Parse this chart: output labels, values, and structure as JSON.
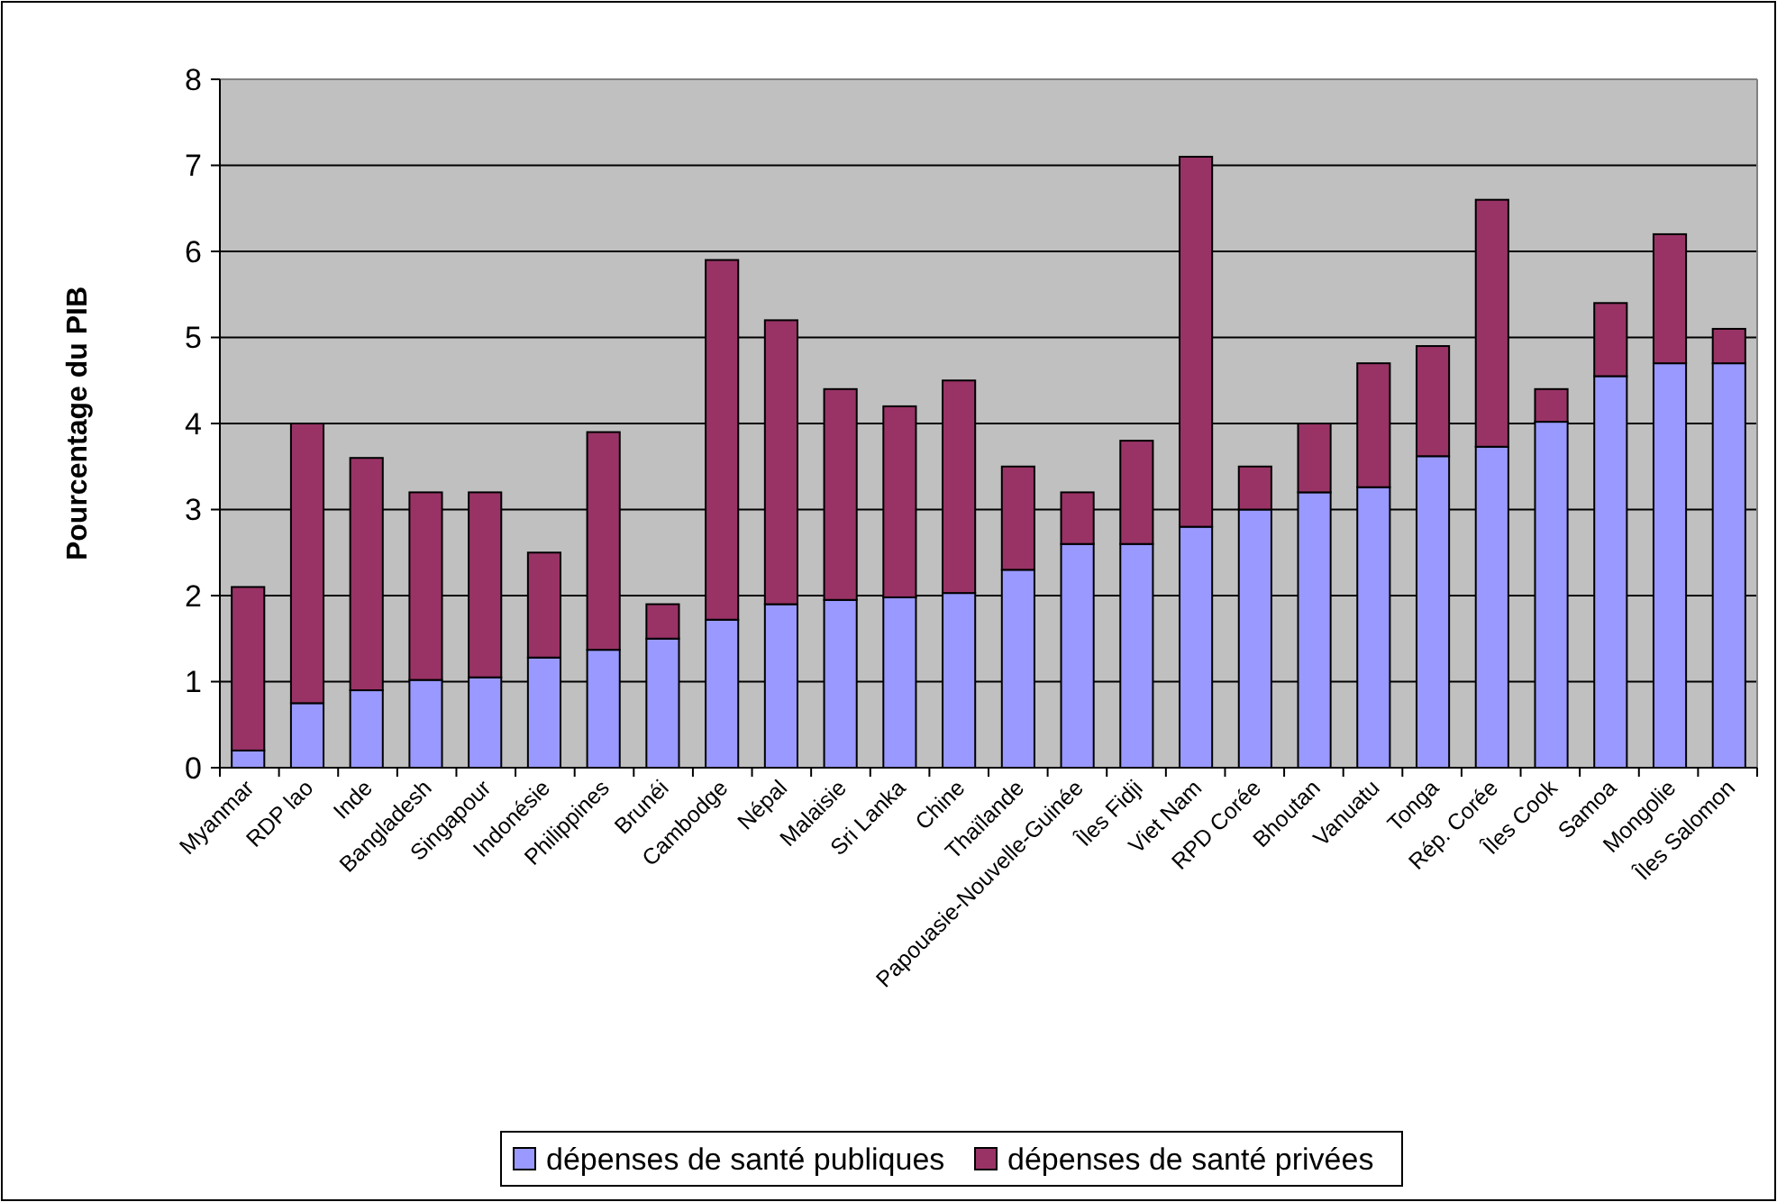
{
  "chart_data": {
    "type": "bar",
    "stacked": true,
    "ylabel": "Pourcentage du PIB",
    "categories": [
      "Myanmar",
      "RDP lao",
      "Inde",
      "Bangladesh",
      "Singapour",
      "Indonésie",
      "Philippines",
      "Brunéi",
      "Cambodge",
      "Népal",
      "Malaisie",
      "Sri Lanka",
      "Chine",
      "Thaïlande",
      "Papouasie-Nouvelle-Guinée",
      "Îles Fidji",
      "Viet Nam",
      "RPD Corée",
      "Bhoutan",
      "Vanuatu",
      "Tonga",
      "Rép. Corée",
      "Îles Cook",
      "Samoa",
      "Mongolie",
      "Îles Salomon"
    ],
    "series": [
      {
        "name": "dépenses de santé publiques",
        "color": "#9999ff",
        "values": [
          0.2,
          0.75,
          0.9,
          1.02,
          1.05,
          1.28,
          1.37,
          1.5,
          1.72,
          1.9,
          1.95,
          1.98,
          2.03,
          2.3,
          2.6,
          2.6,
          2.8,
          3.0,
          3.2,
          3.26,
          3.62,
          3.73,
          4.02,
          4.55,
          4.7,
          4.7
        ]
      },
      {
        "name": "dépenses de santé privées",
        "color": "#993366",
        "values": [
          1.9,
          3.25,
          2.7,
          2.18,
          2.15,
          1.22,
          2.53,
          0.4,
          4.18,
          3.3,
          2.45,
          2.22,
          2.47,
          1.2,
          0.6,
          1.2,
          4.3,
          0.5,
          0.8,
          1.44,
          1.28,
          2.87,
          0.38,
          0.85,
          1.5,
          0.4
        ]
      }
    ],
    "ylim": [
      0,
      8
    ],
    "yticks": [
      0,
      1,
      2,
      3,
      4,
      5,
      6,
      7,
      8
    ],
    "grid": "y",
    "legend": "bottom"
  }
}
